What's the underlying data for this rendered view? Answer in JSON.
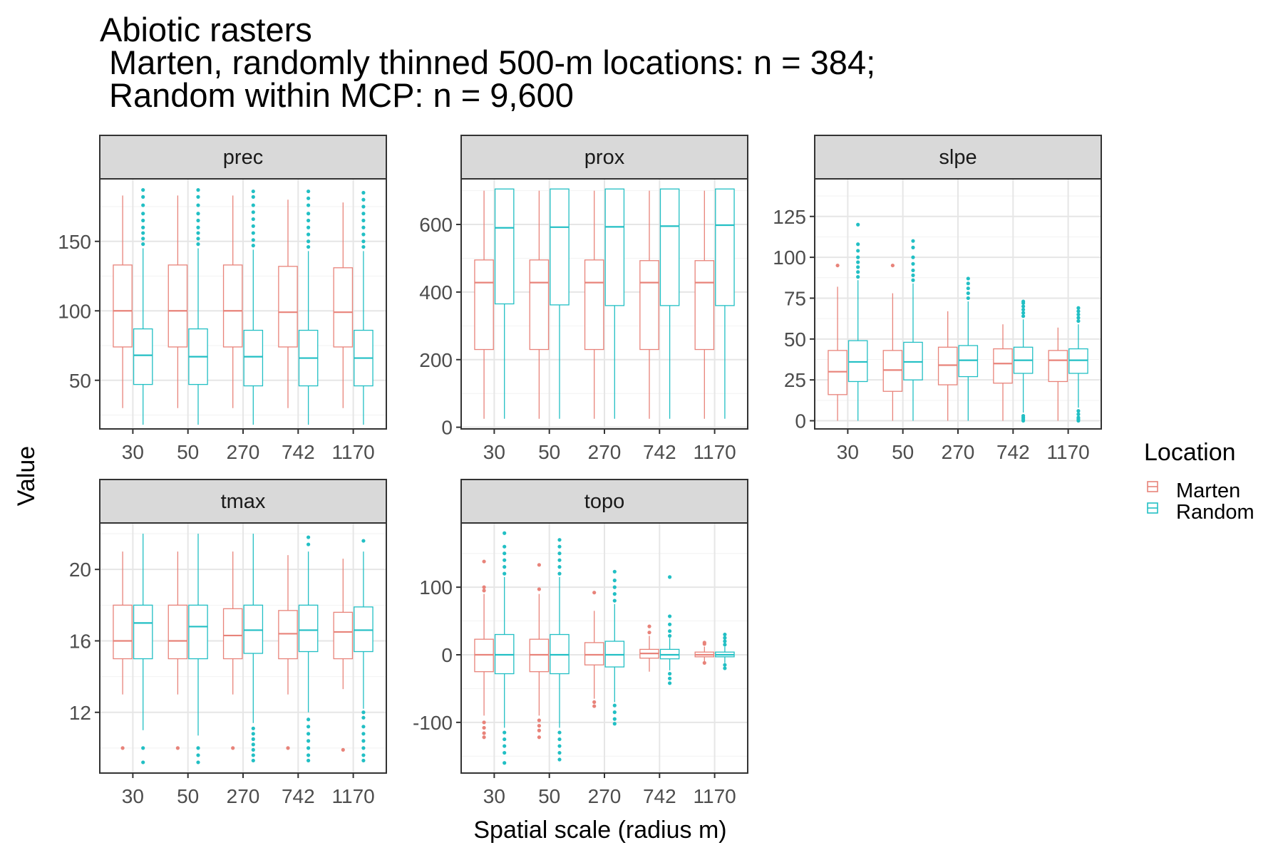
{
  "title": [
    "Abiotic rasters",
    " Marten, randomly thinned 500-m locations: n = 384;",
    " Random within MCP: n = 9,600"
  ],
  "xlabel": "Spatial scale (radius m)",
  "ylabel": "Value",
  "legend": {
    "title": "Location",
    "placement": "right",
    "items": [
      {
        "name": "Marten",
        "color": "#E8837A"
      },
      {
        "name": "Random",
        "color": "#22BFC4"
      }
    ]
  },
  "chart_data": {
    "type": "boxplot",
    "categories": [
      "30",
      "50",
      "270",
      "742",
      "1170"
    ],
    "series_names": [
      "Marten",
      "Random"
    ],
    "colors": {
      "Marten": "#E8837A",
      "Random": "#22BFC4"
    },
    "panels": [
      {
        "label": "prec",
        "ylim": [
          15,
          195
        ],
        "yticks": [
          50,
          100,
          150
        ],
        "boxes": {
          "Marten": [
            {
              "q1": 74,
              "median": 100,
              "q3": 133,
              "lo": 30,
              "hi": 183,
              "outliers": []
            },
            {
              "q1": 74,
              "median": 100,
              "q3": 133,
              "lo": 30,
              "hi": 183,
              "outliers": []
            },
            {
              "q1": 74,
              "median": 100,
              "q3": 133,
              "lo": 30,
              "hi": 183,
              "outliers": []
            },
            {
              "q1": 74,
              "median": 99,
              "q3": 132,
              "lo": 30,
              "hi": 180,
              "outliers": []
            },
            {
              "q1": 74,
              "median": 99,
              "q3": 131,
              "lo": 30,
              "hi": 178,
              "outliers": []
            }
          ],
          "Random": [
            {
              "q1": 47,
              "median": 68,
              "q3": 87,
              "lo": 18,
              "hi": 145,
              "outliers": [
                148,
                152,
                156,
                160,
                165,
                170,
                176,
                182,
                187
              ]
            },
            {
              "q1": 47,
              "median": 67,
              "q3": 87,
              "lo": 18,
              "hi": 145,
              "outliers": [
                148,
                152,
                156,
                160,
                165,
                170,
                176,
                182,
                187
              ]
            },
            {
              "q1": 46,
              "median": 67,
              "q3": 86,
              "lo": 18,
              "hi": 144,
              "outliers": [
                147,
                151,
                156,
                161,
                166,
                171,
                176,
                182,
                186
              ]
            },
            {
              "q1": 46,
              "median": 66,
              "q3": 86,
              "lo": 18,
              "hi": 143,
              "outliers": [
                146,
                150,
                155,
                160,
                165,
                170,
                176,
                181,
                186
              ]
            },
            {
              "q1": 46,
              "median": 66,
              "q3": 86,
              "lo": 18,
              "hi": 143,
              "outliers": [
                146,
                150,
                155,
                160,
                165,
                170,
                175,
                180,
                185
              ]
            }
          ]
        }
      },
      {
        "label": "prox",
        "ylim": [
          -5,
          735
        ],
        "yticks": [
          0,
          200,
          400,
          600
        ],
        "boxes": {
          "Marten": [
            {
              "q1": 230,
              "median": 428,
              "q3": 495,
              "lo": 25,
              "hi": 700,
              "outliers": []
            },
            {
              "q1": 230,
              "median": 428,
              "q3": 495,
              "lo": 25,
              "hi": 700,
              "outliers": []
            },
            {
              "q1": 230,
              "median": 428,
              "q3": 495,
              "lo": 25,
              "hi": 700,
              "outliers": []
            },
            {
              "q1": 230,
              "median": 428,
              "q3": 493,
              "lo": 25,
              "hi": 700,
              "outliers": []
            },
            {
              "q1": 230,
              "median": 428,
              "q3": 493,
              "lo": 25,
              "hi": 700,
              "outliers": []
            }
          ],
          "Random": [
            {
              "q1": 365,
              "median": 590,
              "q3": 705,
              "lo": 25,
              "hi": 705,
              "outliers": []
            },
            {
              "q1": 362,
              "median": 592,
              "q3": 705,
              "lo": 25,
              "hi": 705,
              "outliers": []
            },
            {
              "q1": 360,
              "median": 593,
              "q3": 705,
              "lo": 25,
              "hi": 705,
              "outliers": []
            },
            {
              "q1": 360,
              "median": 595,
              "q3": 705,
              "lo": 25,
              "hi": 705,
              "outliers": []
            },
            {
              "q1": 360,
              "median": 598,
              "q3": 705,
              "lo": 25,
              "hi": 705,
              "outliers": []
            }
          ]
        }
      },
      {
        "label": "slpe",
        "ylim": [
          -5,
          148
        ],
        "yticks": [
          0,
          25,
          50,
          75,
          100,
          125
        ],
        "boxes": {
          "Marten": [
            {
              "q1": 16,
              "median": 30,
              "q3": 43,
              "lo": 0,
              "hi": 82,
              "outliers": [
                95
              ]
            },
            {
              "q1": 18,
              "median": 31,
              "q3": 43,
              "lo": 0,
              "hi": 78,
              "outliers": [
                95
              ]
            },
            {
              "q1": 22,
              "median": 34,
              "q3": 45,
              "lo": 0,
              "hi": 67,
              "outliers": []
            },
            {
              "q1": 23,
              "median": 35,
              "q3": 44,
              "lo": 0,
              "hi": 59,
              "outliers": []
            },
            {
              "q1": 24,
              "median": 37,
              "q3": 43,
              "lo": 0,
              "hi": 57,
              "outliers": []
            }
          ],
          "Random": [
            {
              "q1": 24,
              "median": 36,
              "q3": 49,
              "lo": 0,
              "hi": 86,
              "outliers": [
                88,
                91,
                94,
                97,
                100,
                104,
                108,
                120
              ]
            },
            {
              "q1": 25,
              "median": 36,
              "q3": 48,
              "lo": 0,
              "hi": 84,
              "outliers": [
                86,
                89,
                92,
                96,
                100,
                106,
                110
              ]
            },
            {
              "q1": 27,
              "median": 37,
              "q3": 46,
              "lo": 0,
              "hi": 73,
              "outliers": [
                75,
                78,
                81,
                84,
                87
              ]
            },
            {
              "q1": 29,
              "median": 37,
              "q3": 45,
              "lo": 5,
              "hi": 62,
              "outliers": [
                0,
                1,
                2,
                3,
                64,
                66,
                68,
                70,
                72,
                73
              ]
            },
            {
              "q1": 29,
              "median": 37,
              "q3": 44,
              "lo": 8,
              "hi": 59,
              "outliers": [
                0,
                1,
                2,
                4,
                6,
                61,
                63,
                65,
                67,
                69
              ]
            }
          ]
        }
      },
      {
        "label": "tmax",
        "ylim": [
          8.6,
          22.6
        ],
        "yticks": [
          12,
          16,
          20
        ],
        "boxes": {
          "Marten": [
            {
              "q1": 15,
              "median": 16,
              "q3": 18,
              "lo": 13,
              "hi": 21,
              "outliers": [
                10
              ]
            },
            {
              "q1": 15,
              "median": 16,
              "q3": 18,
              "lo": 13,
              "hi": 21,
              "outliers": [
                10
              ]
            },
            {
              "q1": 15,
              "median": 16.3,
              "q3": 17.8,
              "lo": 13,
              "hi": 21,
              "outliers": [
                10
              ]
            },
            {
              "q1": 15,
              "median": 16.4,
              "q3": 17.7,
              "lo": 13,
              "hi": 20.8,
              "outliers": [
                10
              ]
            },
            {
              "q1": 15,
              "median": 16.5,
              "q3": 17.6,
              "lo": 13.3,
              "hi": 20.6,
              "outliers": [
                9.9
              ]
            }
          ],
          "Random": [
            {
              "q1": 15,
              "median": 17,
              "q3": 18,
              "lo": 11,
              "hi": 22,
              "outliers": [
                9.2,
                10
              ]
            },
            {
              "q1": 15,
              "median": 16.8,
              "q3": 18,
              "lo": 10.7,
              "hi": 22,
              "outliers": [
                9.2,
                9.6,
                10
              ]
            },
            {
              "q1": 15.3,
              "median": 16.6,
              "q3": 18,
              "lo": 11.4,
              "hi": 22,
              "outliers": [
                9.3,
                9.6,
                9.9,
                10.2,
                10.5,
                10.8,
                11.1
              ]
            },
            {
              "q1": 15.4,
              "median": 16.6,
              "q3": 18,
              "lo": 12,
              "hi": 21,
              "outliers": [
                9.3,
                9.6,
                10,
                10.4,
                10.8,
                11.2,
                11.6,
                21.4,
                21.8
              ]
            },
            {
              "q1": 15.4,
              "median": 16.6,
              "q3": 17.9,
              "lo": 12.2,
              "hi": 21,
              "outliers": [
                9.3,
                9.6,
                10,
                10.4,
                10.8,
                11.2,
                11.7,
                12,
                21.6
              ]
            }
          ]
        }
      },
      {
        "label": "topo",
        "ylim": [
          -175,
          195
        ],
        "yticks": [
          -100,
          0,
          100
        ],
        "boxes": {
          "Marten": [
            {
              "q1": -25,
              "median": 0,
              "q3": 23,
              "lo": -90,
              "hi": 90,
              "outliers": [
                -100,
                -108,
                -116,
                -122,
                95,
                100,
                138
              ]
            },
            {
              "q1": -25,
              "median": 0,
              "q3": 23,
              "lo": -90,
              "hi": 90,
              "outliers": [
                -97,
                -105,
                -112,
                -122,
                97,
                133
              ]
            },
            {
              "q1": -15,
              "median": 0,
              "q3": 18,
              "lo": -65,
              "hi": 65,
              "outliers": [
                -70,
                -76,
                92
              ]
            },
            {
              "q1": -5,
              "median": 2,
              "q3": 8,
              "lo": -25,
              "hi": 28,
              "outliers": [
                33,
                42
              ]
            },
            {
              "q1": -3,
              "median": 0,
              "q3": 4,
              "lo": -13,
              "hi": 12,
              "outliers": [
                -12,
                16,
                18
              ]
            }
          ],
          "Random": [
            {
              "q1": -28,
              "median": 0,
              "q3": 30,
              "lo": -108,
              "hi": 115,
              "outliers": [
                -115,
                -125,
                -135,
                -145,
                -160,
                120,
                130,
                140,
                150,
                160,
                180
              ]
            },
            {
              "q1": -28,
              "median": 0,
              "q3": 30,
              "lo": -108,
              "hi": 115,
              "outliers": [
                -115,
                -125,
                -135,
                -145,
                -155,
                120,
                130,
                140,
                150,
                160,
                170
              ]
            },
            {
              "q1": -18,
              "median": 0,
              "q3": 20,
              "lo": -70,
              "hi": 75,
              "outliers": [
                -75,
                -85,
                -95,
                -102,
                80,
                90,
                100,
                110,
                123
              ]
            },
            {
              "q1": -6,
              "median": 0,
              "q3": 8,
              "lo": -23,
              "hi": 25,
              "outliers": [
                -28,
                -35,
                -42,
                28,
                35,
                45,
                57,
                115
              ]
            },
            {
              "q1": -3,
              "median": 0,
              "q3": 4,
              "lo": -12,
              "hi": 12,
              "outliers": [
                -15,
                -20,
                15,
                20,
                25,
                30
              ]
            }
          ]
        }
      }
    ]
  }
}
